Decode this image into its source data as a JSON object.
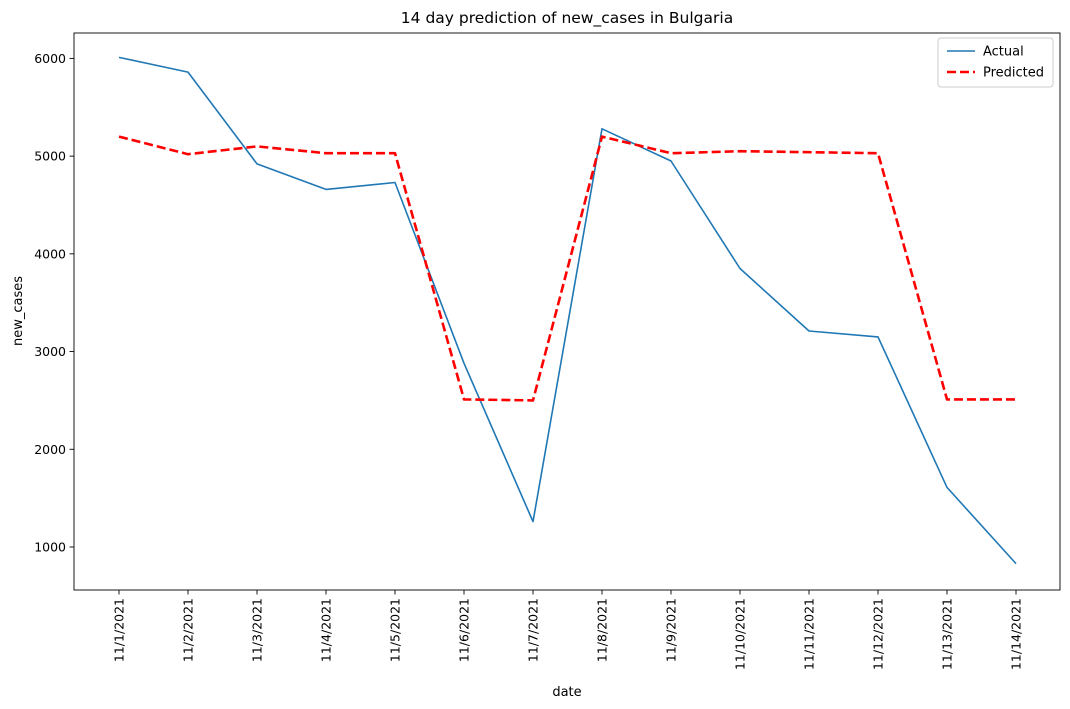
{
  "chart_data": {
    "type": "line",
    "title": "14 day prediction of new_cases in Bulgaria",
    "xlabel": "date",
    "ylabel": "new_cases",
    "categories": [
      "11/1/2021",
      "11/2/2021",
      "11/3/2021",
      "11/4/2021",
      "11/5/2021",
      "11/6/2021",
      "11/7/2021",
      "11/8/2021",
      "11/9/2021",
      "11/10/2021",
      "11/11/2021",
      "11/12/2021",
      "11/13/2021",
      "11/14/2021"
    ],
    "ylim": [
      560,
      6260
    ],
    "yticks": [
      1000,
      2000,
      3000,
      4000,
      5000,
      6000
    ],
    "grid": false,
    "legend_position": "top-right",
    "series": [
      {
        "name": "Actual",
        "color": "#1f77b4",
        "style": "solid",
        "values": [
          6010,
          5860,
          4920,
          4660,
          4730,
          2880,
          1260,
          5280,
          4950,
          3850,
          3210,
          3150,
          1610,
          830
        ]
      },
      {
        "name": "Predicted",
        "color": "#ff0000",
        "style": "dashed",
        "values": [
          5200,
          5020,
          5100,
          5030,
          5030,
          2510,
          2500,
          5200,
          5030,
          5050,
          5040,
          5030,
          2510,
          2510
        ]
      }
    ]
  }
}
